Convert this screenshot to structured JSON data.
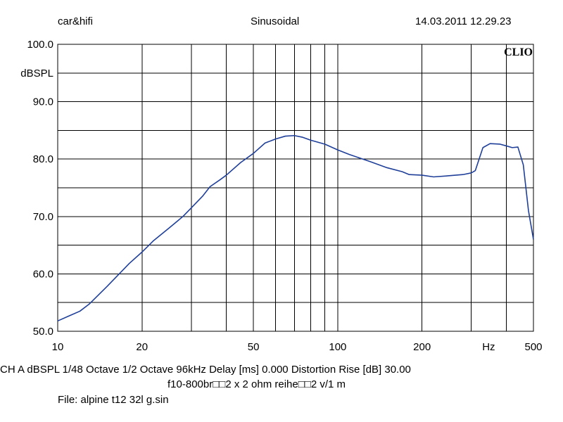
{
  "header": {
    "left": "car&hifi",
    "center": "Sinusoidal",
    "right": "14.03.2011 12.29.23"
  },
  "brand_mark": "CLIO",
  "footer": {
    "line1": "CH A   dBSPL    1/48 Octave   1/2 Octave   96kHz   Delay [ms] 0.000     Distortion Rise [dB] 30.00",
    "line2": "f10-800br□□2 x 2 ohm reihe□□2 v/1 m",
    "line3": "File: alpine t12 32l g.sin"
  },
  "colors": {
    "curve": "#1f3f99",
    "grid": "#000000",
    "background": "#ffffff"
  },
  "chart_data": {
    "type": "line",
    "x_scale": "log",
    "xlim": [
      10,
      500
    ],
    "ylim": [
      50,
      100
    ],
    "ylabel": "dBSPL",
    "xlabel": "Hz",
    "grid": true,
    "x_ticks": [
      {
        "value": 10,
        "label": "10"
      },
      {
        "value": 20,
        "label": "20"
      },
      {
        "value": 50,
        "label": "50"
      },
      {
        "value": 100,
        "label": "100"
      },
      {
        "value": 200,
        "label": "200"
      },
      {
        "value": 500,
        "label": "500"
      }
    ],
    "x_unit_label": {
      "value": 350,
      "label": "Hz"
    },
    "y_ticks": [
      {
        "value": 100,
        "label": "100.0"
      },
      {
        "value": 90,
        "label": "90.0"
      },
      {
        "value": 80,
        "label": "80.0"
      },
      {
        "value": 70,
        "label": "70.0"
      },
      {
        "value": 60,
        "label": "60.0"
      },
      {
        "value": 50,
        "label": "50.0"
      }
    ],
    "y_unit_label": {
      "value": 95,
      "label": "dBSPL"
    },
    "series": [
      {
        "x": [
          10,
          11,
          12,
          13,
          15,
          18,
          20,
          22,
          25,
          28,
          30,
          33,
          35,
          38,
          40,
          45,
          50,
          55,
          60,
          65,
          70,
          75,
          80,
          90,
          100,
          110,
          130,
          150,
          170,
          180,
          200,
          220,
          250,
          280,
          300,
          310,
          330,
          350,
          380,
          400,
          420,
          440,
          460,
          480,
          500
        ],
        "y": [
          51.8,
          52.7,
          53.5,
          54.8,
          57.8,
          61.8,
          63.8,
          65.8,
          68.0,
          70.0,
          71.5,
          73.6,
          75.2,
          76.4,
          77.2,
          79.4,
          81.0,
          82.8,
          83.5,
          84.0,
          84.1,
          83.8,
          83.3,
          82.6,
          81.6,
          80.8,
          79.6,
          78.5,
          77.8,
          77.3,
          77.2,
          76.9,
          77.1,
          77.3,
          77.6,
          78.0,
          82.0,
          82.7,
          82.6,
          82.3,
          82.0,
          82.1,
          79.0,
          71.0,
          66.0
        ]
      }
    ]
  }
}
